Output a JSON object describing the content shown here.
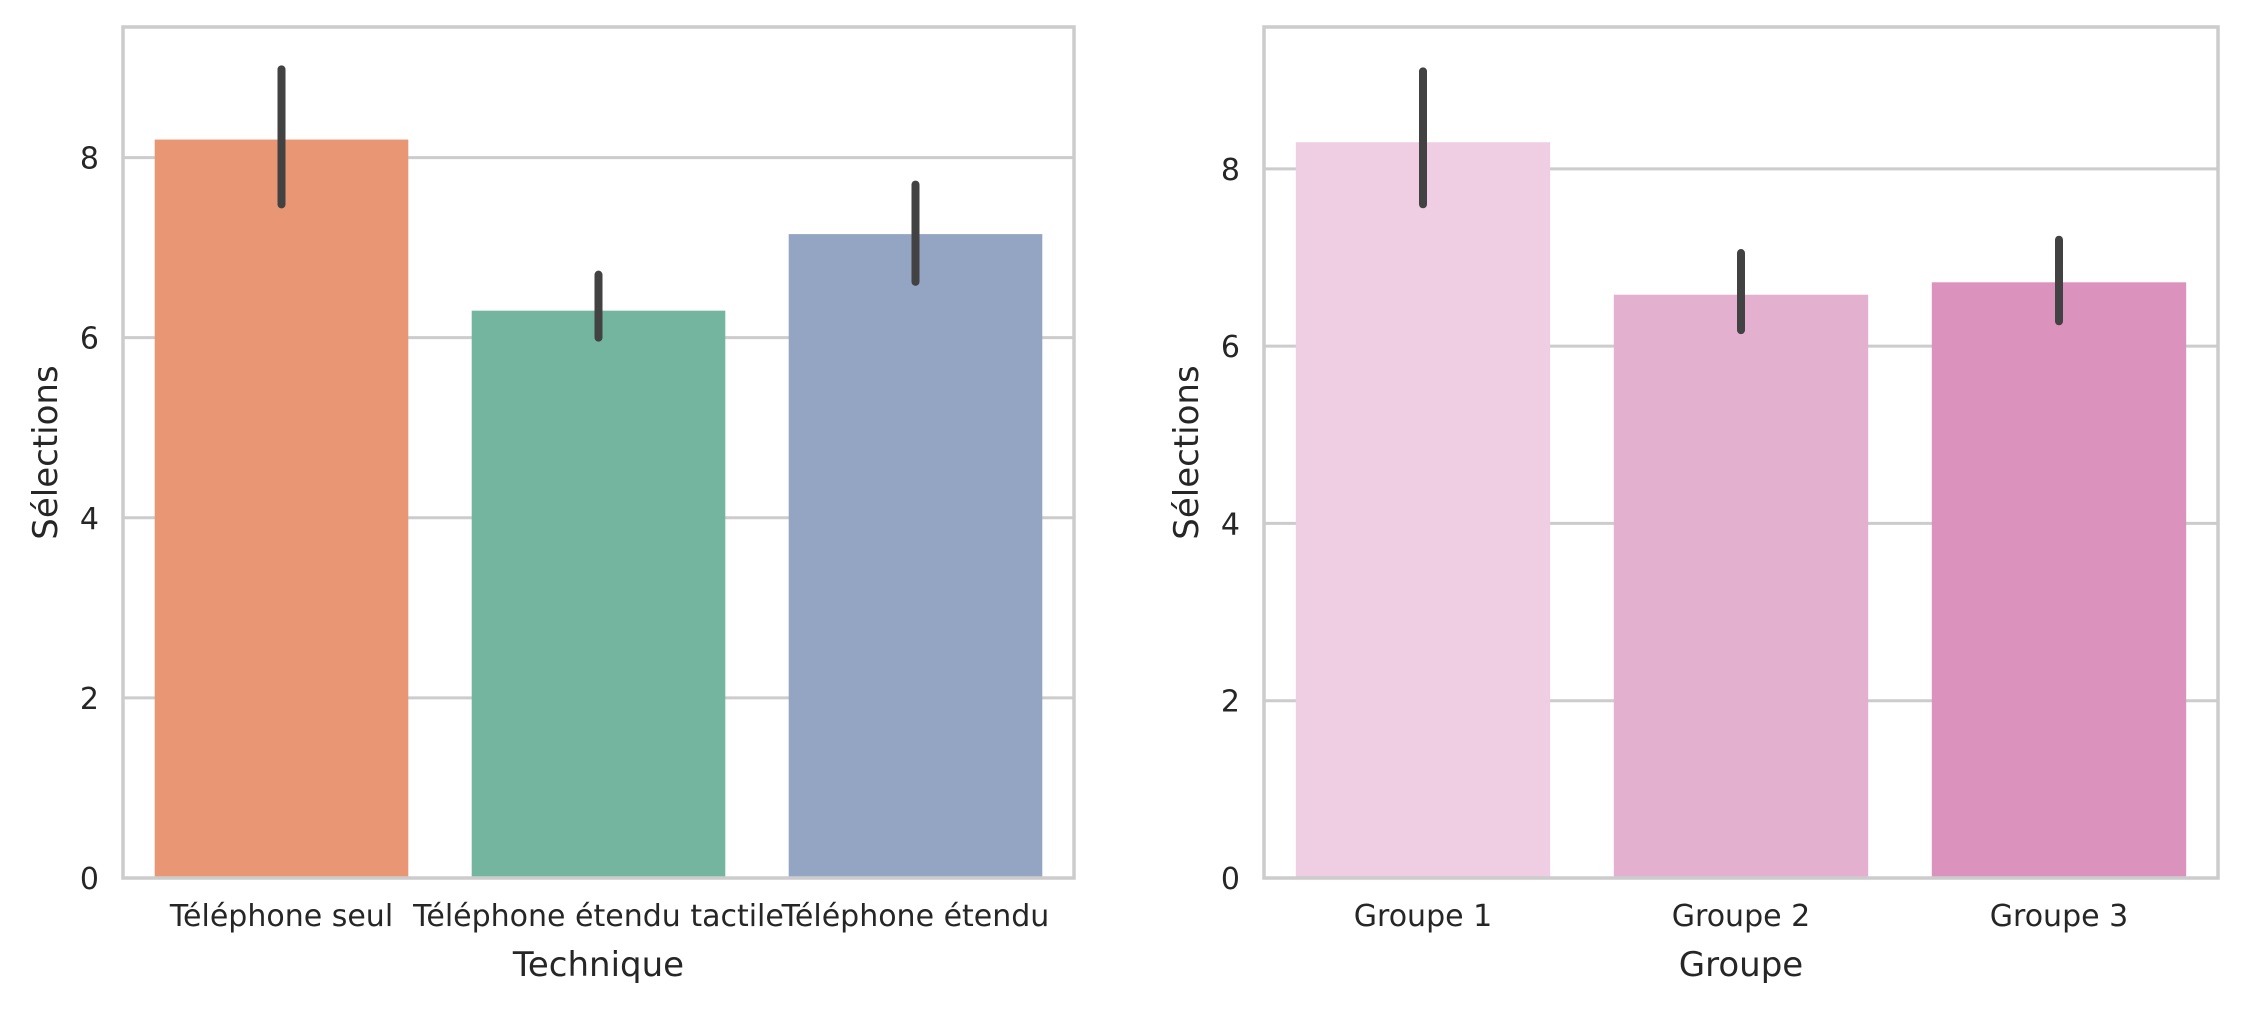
{
  "chart_data": [
    {
      "type": "bar",
      "xlabel": "Technique",
      "ylabel": "Sélections",
      "categories": [
        "Téléphone seul",
        "Téléphone étendu tactile",
        "Téléphone étendu"
      ],
      "values": [
        8.2,
        6.3,
        7.15
      ],
      "error_low": [
        7.48,
        6.0,
        6.62
      ],
      "error_high": [
        8.98,
        6.7,
        7.7
      ],
      "colors": [
        "#e99675",
        "#74b5a0",
        "#94a4c3"
      ],
      "ylim": [
        0,
        9.45
      ],
      "yticks": [
        "0",
        "2",
        "4",
        "6",
        "8"
      ],
      "grid": true,
      "legend": "none"
    },
    {
      "type": "bar",
      "xlabel": "Groupe",
      "ylabel": "Sélections",
      "categories": [
        "Groupe 1",
        "Groupe 2",
        "Groupe 3"
      ],
      "values": [
        8.3,
        6.58,
        6.72
      ],
      "error_low": [
        7.6,
        6.18,
        6.28
      ],
      "error_high": [
        9.1,
        7.05,
        7.2
      ],
      "colors": [
        "#efcde2",
        "#e4b0d0",
        "#db93bd"
      ],
      "ylim": [
        0,
        9.6
      ],
      "yticks": [
        "0",
        "2",
        "4",
        "6",
        "8"
      ],
      "grid": true,
      "legend": "none"
    }
  ]
}
